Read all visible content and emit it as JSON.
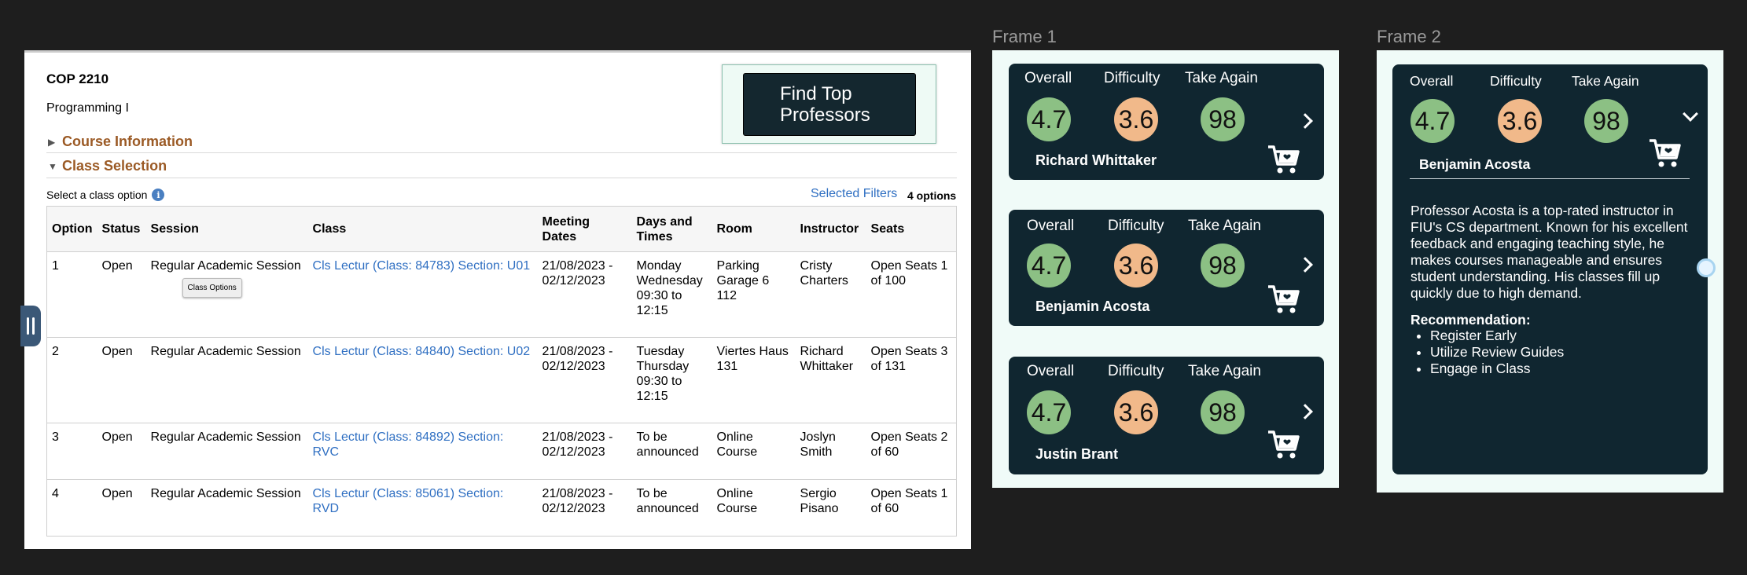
{
  "course": {
    "code": "COP 2210",
    "name": "Programming I",
    "course_info_label": "Course Information",
    "class_selection_label": "Class Selection",
    "select_text": "Select a class option",
    "info_icon_glyph": "i",
    "selected_filters": "Selected Filters",
    "options_count": "4 options",
    "find_button": "Find Top Professors",
    "tooltip": "Class Options"
  },
  "table": {
    "headers": [
      "Option",
      "Status",
      "Session",
      "Class",
      "Meeting Dates",
      "Days and Times",
      "Room",
      "Instructor",
      "Seats"
    ],
    "rows": [
      {
        "option": "1",
        "status": "Open",
        "session": "Regular Academic Session",
        "class": "Cls Lectur (Class: 84783) Section: U01",
        "dates": "21/08/2023 - 02/12/2023",
        "days": "Monday Wednesday 09:30 to 12:15",
        "room": "Parking Garage 6 112",
        "instructor": "Cristy Charters",
        "seats": "Open Seats 1 of 100"
      },
      {
        "option": "2",
        "status": "Open",
        "session": "Regular Academic Session",
        "class": "Cls Lectur (Class: 84840) Section: U02",
        "dates": "21/08/2023 - 02/12/2023",
        "days": "Tuesday Thursday 09:30 to 12:15",
        "room": "Viertes Haus 131",
        "instructor": "Richard Whittaker",
        "seats": "Open Seats 3 of 131"
      },
      {
        "option": "3",
        "status": "Open",
        "session": "Regular Academic Session",
        "class": "Cls Lectur (Class: 84892) Section: RVC",
        "dates": "21/08/2023 - 02/12/2023",
        "days": "To be announced",
        "room": "Online Course",
        "instructor": "Joslyn Smith",
        "seats": "Open Seats 2 of 60"
      },
      {
        "option": "4",
        "status": "Open",
        "session": "Regular Academic Session",
        "class": "Cls Lectur (Class: 85061) Section: RVD",
        "dates": "21/08/2023 - 02/12/2023",
        "days": "To be announced",
        "room": "Online Course",
        "instructor": "Sergio Pisano",
        "seats": "Open Seats 1 of 60"
      }
    ]
  },
  "frame1": {
    "label": "Frame 1",
    "cards": [
      {
        "overall_label": "Overall",
        "difficulty_label": "Difficulty",
        "again_label": "Take Again",
        "overall": "4.7",
        "difficulty": "3.6",
        "again": "98",
        "name": "Richard Whittaker"
      },
      {
        "overall_label": "Overall",
        "difficulty_label": "Difficulty",
        "again_label": "Take Again",
        "overall": "4.7",
        "difficulty": "3.6",
        "again": "98",
        "name": "Benjamin Acosta"
      },
      {
        "overall_label": "Overall",
        "difficulty_label": "Difficulty",
        "again_label": "Take Again",
        "overall": "4.7",
        "difficulty": "3.6",
        "again": "98",
        "name": "Justin Brant"
      }
    ]
  },
  "frame2": {
    "label": "Frame 2",
    "card": {
      "overall_label": "Overall",
      "difficulty_label": "Difficulty",
      "again_label": "Take Again",
      "overall": "4.7",
      "difficulty": "3.6",
      "again": "98",
      "name": "Benjamin Acosta",
      "description": "Professor Acosta is a top-rated instructor in FIU's CS department. Known for his excellent feedback and engaging teaching style, he makes courses manageable and ensures student understanding. His classes fill up quickly due to high demand.",
      "recommendation_title": "Recommendation:",
      "recommendations": [
        "Register Early",
        "Utilize Review Guides",
        "Engage in Class"
      ]
    }
  },
  "colors": {
    "card_bg": "#102630",
    "good": "#8cc084",
    "medium": "#f1b98a",
    "link": "#2f6fc2",
    "section": "#9b5a25"
  },
  "icons": [
    "expand-caret-icon",
    "collapse-caret-icon",
    "info-icon",
    "chevron-right-icon",
    "chevron-down-icon",
    "shopping-cart-icon",
    "drag-handle-icon"
  ]
}
